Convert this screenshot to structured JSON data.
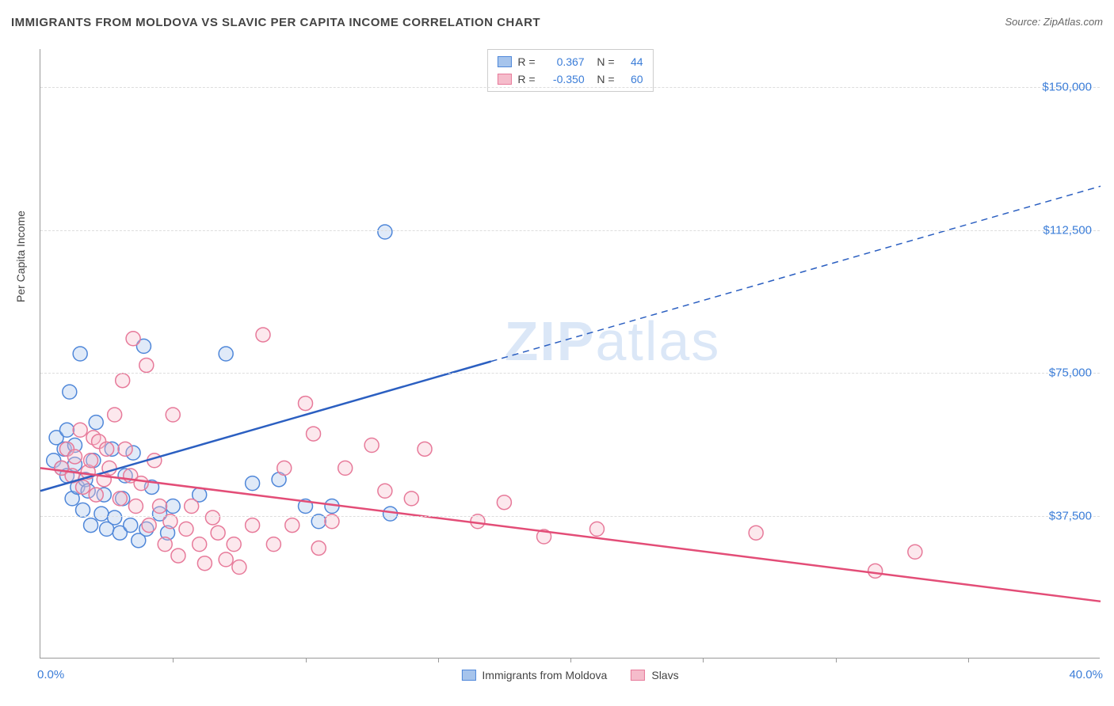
{
  "title": "IMMIGRANTS FROM MOLDOVA VS SLAVIC PER CAPITA INCOME CORRELATION CHART",
  "source": "Source: ZipAtlas.com",
  "yaxis_title": "Per Capita Income",
  "watermark": {
    "bold": "ZIP",
    "light": "atlas"
  },
  "chart": {
    "type": "scatter",
    "background_color": "#ffffff",
    "grid_color": "#dddddd",
    "axis_color": "#999999",
    "tick_label_color": "#3b7dd8",
    "xlim": [
      0,
      40
    ],
    "ylim": [
      0,
      160000
    ],
    "xtick_positions": [
      0,
      5,
      10,
      15,
      20,
      25,
      30,
      35,
      40
    ],
    "xaxis_min_label": "0.0%",
    "xaxis_max_label": "40.0%",
    "ylines": [
      {
        "value": 37500,
        "label": "$37,500"
      },
      {
        "value": 75000,
        "label": "$75,000"
      },
      {
        "value": 112500,
        "label": "$112,500"
      },
      {
        "value": 150000,
        "label": "$150,000"
      }
    ],
    "marker_radius": 9,
    "marker_stroke_width": 1.5,
    "marker_fill_opacity": 0.35,
    "series": [
      {
        "name": "Immigrants from Moldova",
        "key": "moldova",
        "color_stroke": "#4f87d9",
        "color_fill": "#a6c4ec",
        "R": "0.367",
        "N": "44",
        "trend": {
          "solid": {
            "x1": 0,
            "y1": 44000,
            "x2": 17,
            "y2": 78000
          },
          "dashed": {
            "x1": 17,
            "y1": 78000,
            "x2": 40,
            "y2": 124000
          },
          "width": 2.5,
          "color": "#2b5fc1"
        },
        "points": [
          [
            0.5,
            52000
          ],
          [
            0.6,
            58000
          ],
          [
            0.8,
            50000
          ],
          [
            0.9,
            55000
          ],
          [
            1.0,
            48000
          ],
          [
            1.0,
            60000
          ],
          [
            1.1,
            70000
          ],
          [
            1.2,
            42000
          ],
          [
            1.3,
            51000
          ],
          [
            1.3,
            56000
          ],
          [
            1.4,
            45000
          ],
          [
            1.5,
            80000
          ],
          [
            1.6,
            39000
          ],
          [
            1.7,
            47000
          ],
          [
            1.8,
            44000
          ],
          [
            1.9,
            35000
          ],
          [
            2.0,
            52000
          ],
          [
            2.1,
            62000
          ],
          [
            2.3,
            38000
          ],
          [
            2.4,
            43000
          ],
          [
            2.5,
            34000
          ],
          [
            2.7,
            55000
          ],
          [
            2.8,
            37000
          ],
          [
            3.0,
            33000
          ],
          [
            3.1,
            42000
          ],
          [
            3.2,
            48000
          ],
          [
            3.4,
            35000
          ],
          [
            3.5,
            54000
          ],
          [
            3.7,
            31000
          ],
          [
            3.9,
            82000
          ],
          [
            4.0,
            34000
          ],
          [
            4.2,
            45000
          ],
          [
            4.5,
            38000
          ],
          [
            4.8,
            33000
          ],
          [
            5.0,
            40000
          ],
          [
            6.0,
            43000
          ],
          [
            7.0,
            80000
          ],
          [
            8.0,
            46000
          ],
          [
            9.0,
            47000
          ],
          [
            10.0,
            40000
          ],
          [
            10.5,
            36000
          ],
          [
            11.0,
            40000
          ],
          [
            13.0,
            112000
          ],
          [
            13.2,
            38000
          ]
        ]
      },
      {
        "name": "Slavs",
        "key": "slavs",
        "color_stroke": "#e77a9a",
        "color_fill": "#f5bccb",
        "R": "-0.350",
        "N": "60",
        "trend": {
          "solid": {
            "x1": 0,
            "y1": 50000,
            "x2": 40,
            "y2": 15000
          },
          "dashed": null,
          "width": 2.5,
          "color": "#e34d77"
        },
        "points": [
          [
            0.8,
            50000
          ],
          [
            1.0,
            55000
          ],
          [
            1.2,
            48000
          ],
          [
            1.3,
            53000
          ],
          [
            1.5,
            60000
          ],
          [
            1.6,
            45000
          ],
          [
            1.8,
            49000
          ],
          [
            1.9,
            52000
          ],
          [
            2.0,
            58000
          ],
          [
            2.1,
            43000
          ],
          [
            2.2,
            57000
          ],
          [
            2.4,
            47000
          ],
          [
            2.5,
            55000
          ],
          [
            2.6,
            50000
          ],
          [
            2.8,
            64000
          ],
          [
            3.0,
            42000
          ],
          [
            3.1,
            73000
          ],
          [
            3.2,
            55000
          ],
          [
            3.4,
            48000
          ],
          [
            3.5,
            84000
          ],
          [
            3.6,
            40000
          ],
          [
            3.8,
            46000
          ],
          [
            4.0,
            77000
          ],
          [
            4.1,
            35000
          ],
          [
            4.3,
            52000
          ],
          [
            4.5,
            40000
          ],
          [
            4.7,
            30000
          ],
          [
            4.9,
            36000
          ],
          [
            5.0,
            64000
          ],
          [
            5.2,
            27000
          ],
          [
            5.5,
            34000
          ],
          [
            5.7,
            40000
          ],
          [
            6.0,
            30000
          ],
          [
            6.2,
            25000
          ],
          [
            6.5,
            37000
          ],
          [
            6.7,
            33000
          ],
          [
            7.0,
            26000
          ],
          [
            7.3,
            30000
          ],
          [
            7.5,
            24000
          ],
          [
            8.0,
            35000
          ],
          [
            8.4,
            85000
          ],
          [
            8.8,
            30000
          ],
          [
            9.2,
            50000
          ],
          [
            9.5,
            35000
          ],
          [
            10.0,
            67000
          ],
          [
            10.3,
            59000
          ],
          [
            10.5,
            29000
          ],
          [
            11.0,
            36000
          ],
          [
            11.5,
            50000
          ],
          [
            12.5,
            56000
          ],
          [
            13.0,
            44000
          ],
          [
            14.0,
            42000
          ],
          [
            14.5,
            55000
          ],
          [
            16.5,
            36000
          ],
          [
            17.5,
            41000
          ],
          [
            19.0,
            32000
          ],
          [
            21.0,
            34000
          ],
          [
            27.0,
            33000
          ],
          [
            31.5,
            23000
          ],
          [
            33.0,
            28000
          ]
        ]
      }
    ],
    "legend_bottom": [
      {
        "label": "Immigrants from Moldova",
        "stroke": "#4f87d9",
        "fill": "#a6c4ec"
      },
      {
        "label": "Slavs",
        "stroke": "#e77a9a",
        "fill": "#f5bccb"
      }
    ]
  }
}
